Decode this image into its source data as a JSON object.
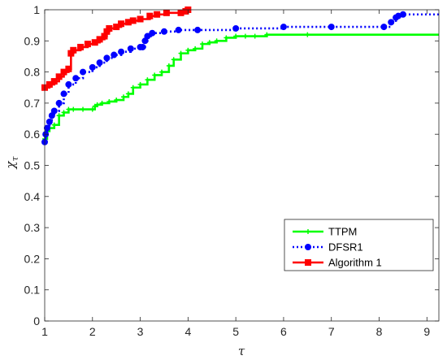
{
  "chart_data": {
    "type": "line",
    "title": "",
    "xlabel": "τ",
    "ylabel": "χτ",
    "ylabel_main": "χ",
    "ylabel_sub": "τ",
    "xlim": [
      1,
      9.25
    ],
    "ylim": [
      0,
      1
    ],
    "xticks": [
      1,
      2,
      3,
      4,
      5,
      6,
      7,
      8,
      9
    ],
    "yticks": [
      0,
      0.1,
      0.2,
      0.3,
      0.4,
      0.5,
      0.6,
      0.7,
      0.8,
      0.9,
      1
    ],
    "ytick_labels": [
      "0",
      "0.1",
      "0.2",
      "0.3",
      "0.4",
      "0.5",
      "0.6",
      "0.7",
      "0.8",
      "0.9",
      "1"
    ],
    "grid": false,
    "legend_position": "bottom-right",
    "series": [
      {
        "name": "TTPM",
        "color": "#00ff00",
        "line_style": "solid",
        "marker": "plus",
        "points": [
          [
            1.0,
            0.585
          ],
          [
            1.05,
            0.61
          ],
          [
            1.1,
            0.62
          ],
          [
            1.2,
            0.63
          ],
          [
            1.3,
            0.66
          ],
          [
            1.4,
            0.67
          ],
          [
            1.5,
            0.68
          ],
          [
            1.6,
            0.68
          ],
          [
            1.8,
            0.68
          ],
          [
            2.0,
            0.68
          ],
          [
            2.05,
            0.69
          ],
          [
            2.1,
            0.695
          ],
          [
            2.2,
            0.7
          ],
          [
            2.35,
            0.705
          ],
          [
            2.5,
            0.71
          ],
          [
            2.65,
            0.72
          ],
          [
            2.75,
            0.73
          ],
          [
            2.85,
            0.75
          ],
          [
            3.0,
            0.76
          ],
          [
            3.15,
            0.775
          ],
          [
            3.3,
            0.79
          ],
          [
            3.45,
            0.8
          ],
          [
            3.6,
            0.82
          ],
          [
            3.7,
            0.84
          ],
          [
            3.85,
            0.86
          ],
          [
            4.0,
            0.87
          ],
          [
            4.15,
            0.875
          ],
          [
            4.3,
            0.89
          ],
          [
            4.45,
            0.895
          ],
          [
            4.6,
            0.9
          ],
          [
            4.8,
            0.91
          ],
          [
            5.0,
            0.915
          ],
          [
            5.2,
            0.915
          ],
          [
            5.4,
            0.915
          ],
          [
            5.65,
            0.92
          ],
          [
            6.5,
            0.92
          ],
          [
            9.25,
            0.92
          ]
        ]
      },
      {
        "name": "DFSR1",
        "color": "#0000ff",
        "line_style": "dotted",
        "marker": "circle",
        "points": [
          [
            1.0,
            0.575
          ],
          [
            1.02,
            0.6
          ],
          [
            1.05,
            0.62
          ],
          [
            1.1,
            0.64
          ],
          [
            1.15,
            0.66
          ],
          [
            1.2,
            0.675
          ],
          [
            1.3,
            0.7
          ],
          [
            1.4,
            0.73
          ],
          [
            1.5,
            0.76
          ],
          [
            1.65,
            0.78
          ],
          [
            1.8,
            0.8
          ],
          [
            2.0,
            0.815
          ],
          [
            2.15,
            0.83
          ],
          [
            2.3,
            0.845
          ],
          [
            2.45,
            0.855
          ],
          [
            2.6,
            0.865
          ],
          [
            2.8,
            0.875
          ],
          [
            3.0,
            0.88
          ],
          [
            3.05,
            0.88
          ],
          [
            3.1,
            0.9
          ],
          [
            3.15,
            0.915
          ],
          [
            3.25,
            0.925
          ],
          [
            3.5,
            0.93
          ],
          [
            3.8,
            0.935
          ],
          [
            4.2,
            0.935
          ],
          [
            5.0,
            0.94
          ],
          [
            6.0,
            0.945
          ],
          [
            7.0,
            0.945
          ],
          [
            8.1,
            0.945
          ],
          [
            8.25,
            0.96
          ],
          [
            8.35,
            0.975
          ],
          [
            8.4,
            0.98
          ],
          [
            8.5,
            0.985
          ],
          [
            9.25,
            0.985
          ]
        ]
      },
      {
        "name": "Algorithm 1",
        "color": "#ff0000",
        "line_style": "solid",
        "marker": "square",
        "points": [
          [
            1.0,
            0.75
          ],
          [
            1.1,
            0.76
          ],
          [
            1.2,
            0.77
          ],
          [
            1.3,
            0.785
          ],
          [
            1.4,
            0.8
          ],
          [
            1.5,
            0.81
          ],
          [
            1.55,
            0.86
          ],
          [
            1.6,
            0.87
          ],
          [
            1.75,
            0.88
          ],
          [
            1.9,
            0.89
          ],
          [
            2.05,
            0.895
          ],
          [
            2.15,
            0.905
          ],
          [
            2.25,
            0.915
          ],
          [
            2.3,
            0.93
          ],
          [
            2.35,
            0.94
          ],
          [
            2.5,
            0.945
          ],
          [
            2.6,
            0.955
          ],
          [
            2.75,
            0.96
          ],
          [
            2.85,
            0.965
          ],
          [
            3.0,
            0.97
          ],
          [
            3.2,
            0.98
          ],
          [
            3.35,
            0.985
          ],
          [
            3.55,
            0.99
          ],
          [
            3.85,
            0.99
          ],
          [
            3.95,
            0.995
          ],
          [
            4.0,
            1.0
          ]
        ]
      }
    ]
  }
}
